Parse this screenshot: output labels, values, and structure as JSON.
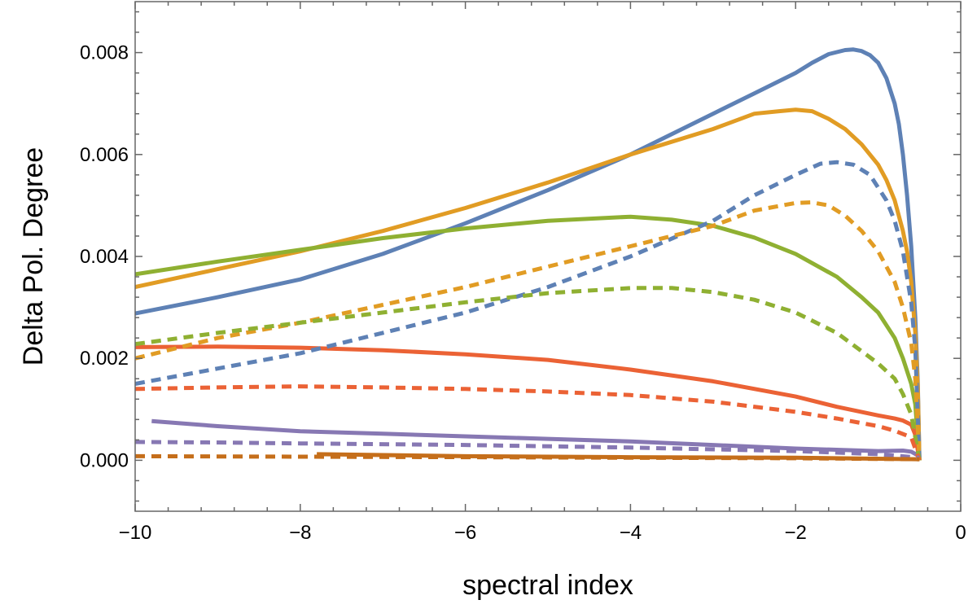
{
  "chart_data": {
    "type": "line",
    "title": "",
    "xlabel": "spectral index",
    "ylabel": "Delta Pol. Degree",
    "xlim": [
      -10,
      0
    ],
    "ylim": [
      -0.001,
      0.009
    ],
    "x_ticks": [
      -10,
      -8,
      -6,
      -4,
      -2,
      0
    ],
    "x_tick_labels": [
      "−10",
      "−8",
      "−6",
      "−4",
      "−2",
      "0"
    ],
    "x_minor_step": 0.4,
    "y_ticks": [
      0.0,
      0.002,
      0.004,
      0.006,
      0.008
    ],
    "y_tick_labels": [
      "0.000",
      "0.002",
      "0.004",
      "0.006",
      "0.008"
    ],
    "y_minor_step": 0.0004,
    "grid": false,
    "legend": false,
    "series": [
      {
        "name": "blue solid",
        "color": "#5E81B5",
        "style": "solid",
        "points": [
          [
            -10,
            0.00288
          ],
          [
            -9,
            0.0032
          ],
          [
            -8,
            0.00355
          ],
          [
            -7,
            0.00405
          ],
          [
            -6,
            0.00465
          ],
          [
            -5,
            0.0053
          ],
          [
            -4,
            0.006
          ],
          [
            -3,
            0.0068
          ],
          [
            -2.5,
            0.0072
          ],
          [
            -2,
            0.0076
          ],
          [
            -1.8,
            0.0078
          ],
          [
            -1.6,
            0.00797
          ],
          [
            -1.4,
            0.00805
          ],
          [
            -1.3,
            0.00806
          ],
          [
            -1.2,
            0.00803
          ],
          [
            -1.1,
            0.00795
          ],
          [
            -1.0,
            0.0078
          ],
          [
            -0.9,
            0.0075
          ],
          [
            -0.8,
            0.007
          ],
          [
            -0.75,
            0.0066
          ],
          [
            -0.7,
            0.006
          ],
          [
            -0.65,
            0.0052
          ],
          [
            -0.6,
            0.0042
          ],
          [
            -0.55,
            0.0028
          ],
          [
            -0.52,
            0.0015
          ],
          [
            -0.5,
            0.0
          ]
        ]
      },
      {
        "name": "orange solid",
        "color": "#E19C24",
        "style": "solid",
        "points": [
          [
            -10,
            0.0034
          ],
          [
            -9,
            0.00375
          ],
          [
            -8,
            0.0041
          ],
          [
            -7,
            0.0045
          ],
          [
            -6,
            0.00495
          ],
          [
            -5,
            0.00545
          ],
          [
            -4,
            0.006
          ],
          [
            -3,
            0.0065
          ],
          [
            -2.5,
            0.0068
          ],
          [
            -2.2,
            0.00685
          ],
          [
            -2,
            0.00688
          ],
          [
            -1.8,
            0.00685
          ],
          [
            -1.6,
            0.0067
          ],
          [
            -1.4,
            0.0065
          ],
          [
            -1.2,
            0.0062
          ],
          [
            -1.0,
            0.0058
          ],
          [
            -0.9,
            0.0055
          ],
          [
            -0.8,
            0.0051
          ],
          [
            -0.7,
            0.0045
          ],
          [
            -0.65,
            0.0041
          ],
          [
            -0.6,
            0.0035
          ],
          [
            -0.55,
            0.0025
          ],
          [
            -0.52,
            0.0014
          ],
          [
            -0.5,
            0.0
          ]
        ]
      },
      {
        "name": "green solid",
        "color": "#8FB032",
        "style": "solid",
        "points": [
          [
            -10,
            0.00365
          ],
          [
            -9,
            0.0039
          ],
          [
            -8,
            0.00413
          ],
          [
            -7,
            0.00436
          ],
          [
            -6,
            0.00455
          ],
          [
            -5,
            0.0047
          ],
          [
            -4,
            0.00478
          ],
          [
            -3.5,
            0.00472
          ],
          [
            -3,
            0.0046
          ],
          [
            -2.5,
            0.00437
          ],
          [
            -2,
            0.00405
          ],
          [
            -1.5,
            0.0036
          ],
          [
            -1.2,
            0.0032
          ],
          [
            -1.0,
            0.0029
          ],
          [
            -0.8,
            0.0024
          ],
          [
            -0.7,
            0.002
          ],
          [
            -0.6,
            0.0015
          ],
          [
            -0.55,
            0.0011
          ],
          [
            -0.5,
            0.0
          ]
        ]
      },
      {
        "name": "red solid",
        "color": "#EB6235",
        "style": "solid",
        "points": [
          [
            -10,
            0.00222
          ],
          [
            -9,
            0.00223
          ],
          [
            -8,
            0.00221
          ],
          [
            -7,
            0.00216
          ],
          [
            -6,
            0.00208
          ],
          [
            -5,
            0.00197
          ],
          [
            -4,
            0.00178
          ],
          [
            -3,
            0.00155
          ],
          [
            -2,
            0.00125
          ],
          [
            -1.5,
            0.00105
          ],
          [
            -1.0,
            0.00088
          ],
          [
            -0.8,
            0.00082
          ],
          [
            -0.7,
            0.00078
          ],
          [
            -0.6,
            0.0007
          ],
          [
            -0.55,
            0.0005
          ],
          [
            -0.5,
            0.0
          ]
        ]
      },
      {
        "name": "purple solid",
        "color": "#8778B3",
        "style": "solid",
        "points": [
          [
            -9.8,
            0.00077
          ],
          [
            -9,
            0.00067
          ],
          [
            -8,
            0.00057
          ],
          [
            -7,
            0.00052
          ],
          [
            -6,
            0.00047
          ],
          [
            -5,
            0.00042
          ],
          [
            -4,
            0.00037
          ],
          [
            -3,
            0.0003
          ],
          [
            -2,
            0.00023
          ],
          [
            -1,
            0.00018
          ],
          [
            -0.7,
            0.00019
          ],
          [
            -0.6,
            0.00017
          ],
          [
            -0.5,
            8e-05
          ]
        ]
      },
      {
        "name": "brown solid",
        "color": "#C56E1A",
        "style": "solid",
        "points": [
          [
            -7.8,
            0.00012
          ],
          [
            -6,
            8e-05
          ],
          [
            -4,
            6e-05
          ],
          [
            -2,
            5e-05
          ],
          [
            -0.5,
            2e-05
          ]
        ]
      },
      {
        "name": "blue dashed",
        "color": "#5E81B5",
        "style": "dashed",
        "points": [
          [
            -10,
            0.0015
          ],
          [
            -9,
            0.0018
          ],
          [
            -8,
            0.0021
          ],
          [
            -7,
            0.0025
          ],
          [
            -6,
            0.0029
          ],
          [
            -5,
            0.0034
          ],
          [
            -4,
            0.004
          ],
          [
            -3,
            0.0047
          ],
          [
            -2.5,
            0.0052
          ],
          [
            -2,
            0.0056
          ],
          [
            -1.7,
            0.00582
          ],
          [
            -1.5,
            0.00585
          ],
          [
            -1.3,
            0.0058
          ],
          [
            -1.1,
            0.0056
          ],
          [
            -0.9,
            0.0051
          ],
          [
            -0.8,
            0.0047
          ],
          [
            -0.7,
            0.0041
          ],
          [
            -0.6,
            0.0031
          ],
          [
            -0.55,
            0.0022
          ],
          [
            -0.5,
            0.0
          ]
        ]
      },
      {
        "name": "orange dashed",
        "color": "#E19C24",
        "style": "dashed",
        "points": [
          [
            -10,
            0.002
          ],
          [
            -9,
            0.0024
          ],
          [
            -8,
            0.0027
          ],
          [
            -7,
            0.00305
          ],
          [
            -6,
            0.0034
          ],
          [
            -5,
            0.0038
          ],
          [
            -4,
            0.0042
          ],
          [
            -3,
            0.0046
          ],
          [
            -2.5,
            0.0049
          ],
          [
            -2,
            0.00505
          ],
          [
            -1.8,
            0.00506
          ],
          [
            -1.6,
            0.005
          ],
          [
            -1.4,
            0.0048
          ],
          [
            -1.2,
            0.0045
          ],
          [
            -1.0,
            0.0041
          ],
          [
            -0.8,
            0.0035
          ],
          [
            -0.7,
            0.003
          ],
          [
            -0.6,
            0.0023
          ],
          [
            -0.55,
            0.0016
          ],
          [
            -0.5,
            0.0
          ]
        ]
      },
      {
        "name": "green dashed",
        "color": "#8FB032",
        "style": "dashed",
        "points": [
          [
            -10,
            0.00228
          ],
          [
            -9,
            0.0025
          ],
          [
            -8,
            0.0027
          ],
          [
            -7,
            0.0029
          ],
          [
            -6,
            0.0031
          ],
          [
            -5,
            0.00328
          ],
          [
            -4,
            0.00338
          ],
          [
            -3.5,
            0.00338
          ],
          [
            -3,
            0.0033
          ],
          [
            -2.5,
            0.00315
          ],
          [
            -2,
            0.0029
          ],
          [
            -1.5,
            0.0025
          ],
          [
            -1.0,
            0.0019
          ],
          [
            -0.8,
            0.0016
          ],
          [
            -0.7,
            0.0013
          ],
          [
            -0.6,
            0.0009
          ],
          [
            -0.5,
            0.0
          ]
        ]
      },
      {
        "name": "red dashed",
        "color": "#EB6235",
        "style": "dashed",
        "points": [
          [
            -10,
            0.0014
          ],
          [
            -9,
            0.00143
          ],
          [
            -8,
            0.00145
          ],
          [
            -7,
            0.00143
          ],
          [
            -6,
            0.0014
          ],
          [
            -5,
            0.00135
          ],
          [
            -4,
            0.00128
          ],
          [
            -3,
            0.00115
          ],
          [
            -2,
            0.00095
          ],
          [
            -1.5,
            0.00082
          ],
          [
            -1.0,
            0.00067
          ],
          [
            -0.8,
            0.00058
          ],
          [
            -0.6,
            0.00045
          ],
          [
            -0.5,
            0.0
          ]
        ]
      },
      {
        "name": "purple dashed",
        "color": "#8778B3",
        "style": "dashed",
        "points": [
          [
            -10,
            0.00036
          ],
          [
            -9,
            0.00035
          ],
          [
            -8,
            0.00033
          ],
          [
            -6,
            0.0003
          ],
          [
            -4,
            0.00025
          ],
          [
            -2,
            0.00018
          ],
          [
            -1,
            0.00012
          ],
          [
            -0.5,
            5e-05
          ]
        ]
      },
      {
        "name": "brown dashed",
        "color": "#C56E1A",
        "style": "dashed",
        "points": [
          [
            -10,
            8e-05
          ],
          [
            -8,
            7e-05
          ],
          [
            -6,
            6e-05
          ],
          [
            -4,
            5e-05
          ],
          [
            -2,
            4e-05
          ],
          [
            -0.5,
            2e-05
          ]
        ]
      }
    ]
  }
}
